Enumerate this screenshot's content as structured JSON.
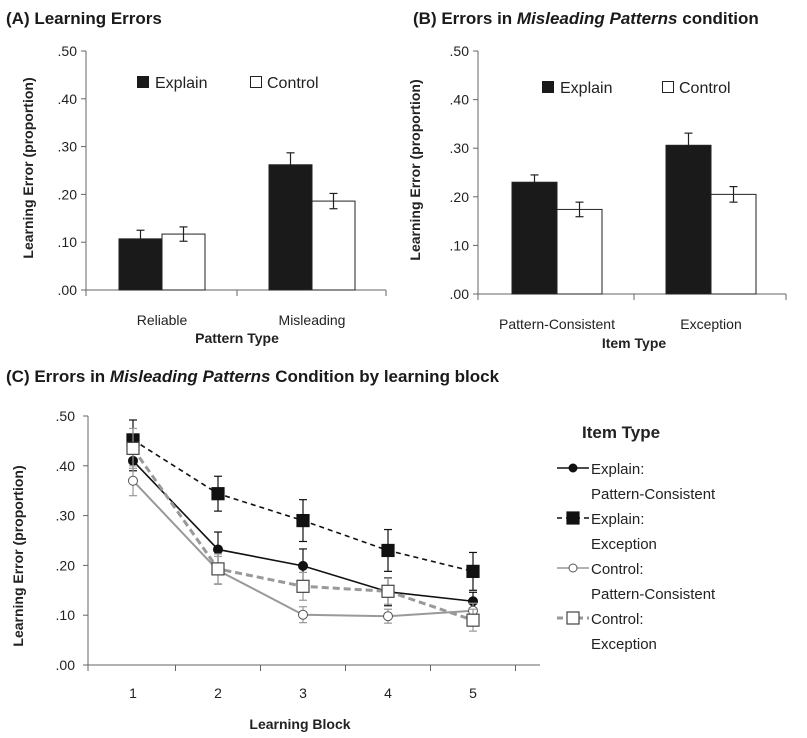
{
  "chart_data": [
    {
      "type": "bar",
      "title_prefix": "(A) Learning Errors",
      "title_italic": "",
      "title_suffix": "",
      "xlabel": "Pattern Type",
      "ylabel": "Learning Error (proportion)",
      "categories": [
        "Reliable",
        "Misleading"
      ],
      "yticks": [
        ".00",
        ".10",
        ".20",
        ".30",
        ".40",
        ".50"
      ],
      "ylim": [
        0,
        0.5
      ],
      "series": [
        {
          "name": "Explain",
          "color": "#1a1a1a",
          "values": [
            0.107,
            0.262
          ],
          "errors": [
            0.018,
            0.025
          ]
        },
        {
          "name": "Control",
          "color": "#ffffff",
          "values": [
            0.117,
            0.186
          ],
          "errors": [
            0.015,
            0.016
          ]
        }
      ]
    },
    {
      "type": "bar",
      "title_prefix": "(B) Errors in ",
      "title_italic": "Misleading Patterns",
      "title_suffix": " condition",
      "xlabel": "Item Type",
      "ylabel": "Learning Error (proportion)",
      "categories": [
        "Pattern-Consistent",
        "Exception"
      ],
      "yticks": [
        ".00",
        ".10",
        ".20",
        ".30",
        ".40",
        ".50"
      ],
      "ylim": [
        0,
        0.5
      ],
      "series": [
        {
          "name": "Explain",
          "color": "#1a1a1a",
          "values": [
            0.23,
            0.306
          ],
          "errors": [
            0.015,
            0.025
          ]
        },
        {
          "name": "Control",
          "color": "#ffffff",
          "values": [
            0.174,
            0.205
          ],
          "errors": [
            0.015,
            0.016
          ]
        }
      ]
    },
    {
      "type": "line",
      "title_prefix": "(C) Errors in ",
      "title_italic": "Misleading Patterns",
      "title_suffix": " Condition by learning block",
      "xlabel": "Learning Block",
      "ylabel": "Learning Error (proportion)",
      "legend_title": "Item Type",
      "x": [
        1,
        2,
        3,
        4,
        5
      ],
      "yticks": [
        ".00",
        ".10",
        ".20",
        ".30",
        ".40",
        ".50"
      ],
      "ylim": [
        0,
        0.5
      ],
      "series": [
        {
          "name_line1": "Explain:",
          "name_line2": "Pattern-Consistent",
          "color": "#111111",
          "dash": "",
          "marker": "circle",
          "fill": "#111111",
          "values": [
            0.41,
            0.232,
            0.199,
            0.147,
            0.128
          ],
          "errors": [
            0.02,
            0.035,
            0.034,
            0.028,
            0.018
          ]
        },
        {
          "name_line1": "Explain:",
          "name_line2": "Exception",
          "color": "#111111",
          "dash": "5,4",
          "marker": "square",
          "fill": "#111111",
          "values": [
            0.452,
            0.344,
            0.29,
            0.23,
            0.188
          ],
          "errors": [
            0.04,
            0.035,
            0.042,
            0.042,
            0.038
          ]
        },
        {
          "name_line1": "Control:",
          "name_line2": "Pattern-Consistent",
          "color": "#999999",
          "dash": "",
          "marker": "circle",
          "fill": "#ffffff",
          "values": [
            0.37,
            0.19,
            0.101,
            0.098,
            0.109
          ],
          "errors": [
            0.03,
            0.028,
            0.016,
            0.014,
            0.015
          ]
        },
        {
          "name_line1": "Control:",
          "name_line2": "Exception",
          "color": "#999999",
          "dash": "7,4",
          "marker": "square",
          "fill": "#ffffff",
          "values": [
            0.435,
            0.193,
            0.158,
            0.148,
            0.09
          ],
          "errors": [
            0.04,
            0.03,
            0.028,
            0.026,
            0.022
          ]
        }
      ]
    }
  ]
}
